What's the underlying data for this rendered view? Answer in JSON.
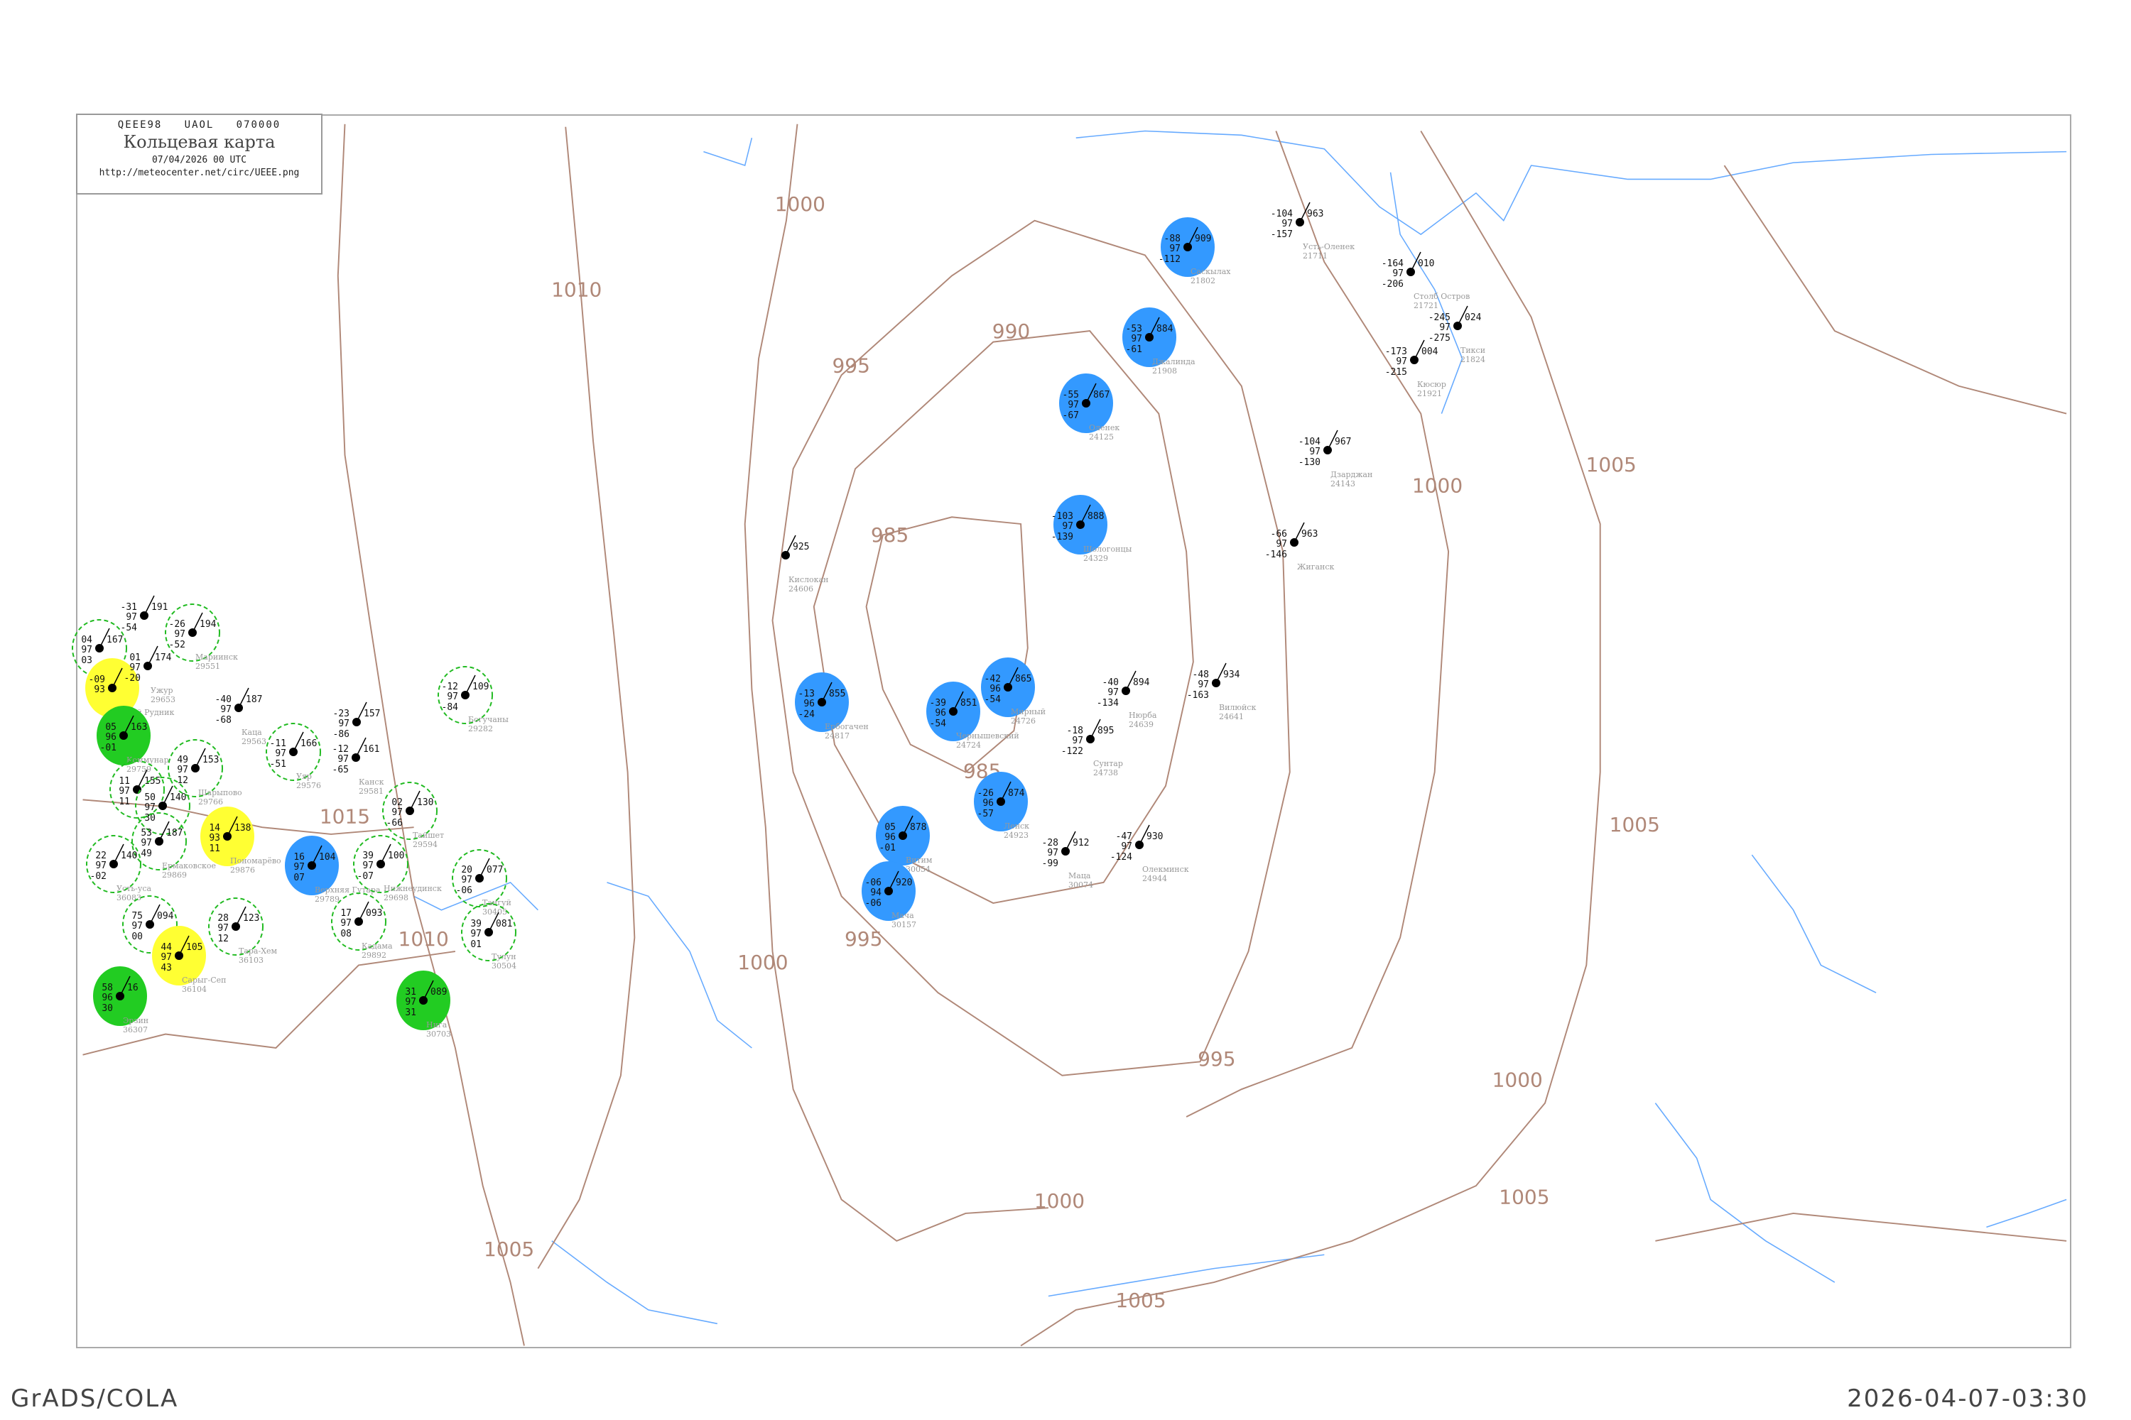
{
  "header": {
    "code": "QEEE98   UAOL   070000",
    "title": "Кольцевая карта",
    "date": "07/04/2026 00 UTC",
    "url": "http://meteocenter.net/circ/UEEE.png"
  },
  "footer": {
    "left": "GrADS/COLA",
    "right": "2026-04-07-03:30"
  },
  "colors": {
    "isobar": "#b08878",
    "water": "#66aaff",
    "mark_blue": "#3399ff",
    "mark_yellow": "#ffff33",
    "mark_green": "#22cc22",
    "mark_dashed": "#22bb22"
  },
  "isobar_labels": [
    "1000",
    "1010",
    "995",
    "990",
    "985",
    "985",
    "1015",
    "1010",
    "995",
    "1000",
    "995",
    "1005",
    "1005",
    "1000",
    "1000",
    "1005",
    "1000",
    "1005",
    "1005"
  ],
  "stations": [
    {
      "name": "Ербогачен",
      "id": "24817",
      "t": "-13",
      "p": "855",
      "td": "-24",
      "vis": "96",
      "mark": "blue"
    },
    {
      "name": "Чернышевский",
      "id": "24724",
      "t": "-39",
      "p": "851",
      "td": "-54",
      "vis": "96",
      "mark": "blue"
    },
    {
      "name": "Мирный",
      "id": "24726",
      "t": "-42",
      "p": "865",
      "td": "-54",
      "vis": "96",
      "mark": "blue"
    },
    {
      "name": "Ленск",
      "id": "24923",
      "t": "-26",
      "p": "874",
      "td": "-57",
      "vis": "96",
      "mark": "blue"
    },
    {
      "name": "Витим",
      "id": "30054",
      "t": "05",
      "p": "878",
      "td": "-01",
      "vis": "96",
      "mark": "blue"
    },
    {
      "name": "Мача",
      "id": "30157",
      "t": "-06",
      "p": "920",
      "td": "-06",
      "vis": "94",
      "mark": "blue"
    },
    {
      "name": "Шологонцы",
      "id": "24329",
      "t": "-103",
      "p": "888",
      "td": "-139",
      "vis": "97",
      "mark": "blue"
    },
    {
      "name": "Кислокан",
      "id": "24606",
      "t": "",
      "p": "925",
      "td": "",
      "vis": "",
      "mark": "none"
    },
    {
      "name": "Нюрба",
      "id": "24639",
      "t": "-40",
      "p": "894",
      "td": "-134",
      "vis": "97",
      "mark": "none"
    },
    {
      "name": "Вилюйск",
      "id": "24641",
      "t": "-48",
      "p": "934",
      "td": "-163",
      "vis": "97",
      "mark": "none"
    },
    {
      "name": "Сунтар",
      "id": "24738",
      "t": "-18",
      "p": "895",
      "td": "-122",
      "vis": "97",
      "mark": "none"
    },
    {
      "name": "Олекминск",
      "id": "24944",
      "t": "-47",
      "p": "930",
      "td": "-124",
      "vis": "97",
      "mark": "none"
    },
    {
      "name": "Маца",
      "id": "30074",
      "t": "-28",
      "p": "912",
      "td": "-99",
      "vis": "97",
      "mark": "none"
    },
    {
      "name": "Саскылах",
      "id": "21802",
      "t": "-88",
      "p": "909",
      "td": "-112",
      "vis": "97",
      "mark": "blue"
    },
    {
      "name": "Джалинда",
      "id": "21908",
      "t": "-53",
      "p": "884",
      "td": "-61",
      "vis": "97",
      "mark": "blue"
    },
    {
      "name": "Оленек",
      "id": "24125",
      "t": "-55",
      "p": "867",
      "td": "-67",
      "vis": "97",
      "mark": "blue"
    },
    {
      "name": "Усть-Оленек",
      "id": "21711",
      "t": "-104",
      "p": "963",
      "td": "-157",
      "vis": "97",
      "mark": "none"
    },
    {
      "name": "Столб Остров",
      "id": "21721",
      "t": "-164",
      "p": "010",
      "td": "-206",
      "vis": "97",
      "mark": "none"
    },
    {
      "name": "Тикси",
      "id": "21824",
      "t": "-245",
      "p": "024",
      "td": "-275",
      "vis": "97",
      "mark": "none"
    },
    {
      "name": "Кюсюр",
      "id": "21921",
      "t": "-173",
      "p": "004",
      "td": "-215",
      "vis": "97",
      "mark": "none"
    },
    {
      "name": "Дзарджан",
      "id": "24143",
      "t": "-104",
      "p": "967",
      "td": "-130",
      "vis": "97",
      "mark": "none"
    },
    {
      "name": "Жиганск",
      "id": "",
      "t": "-66",
      "p": "963",
      "td": "-146",
      "vis": "97",
      "mark": "none"
    },
    {
      "name": "Мариинск",
      "id": "29551",
      "t": "-26",
      "p": "194",
      "td": "-52",
      "vis": "97",
      "mark": "dashed"
    },
    {
      "name": "",
      "id": "",
      "t": "04",
      "p": "167",
      "td": "03",
      "vis": "97",
      "mark": "dashed"
    },
    {
      "name": "Белый Рудник",
      "id": "",
      "t": "-09",
      "p": "",
      "td": "",
      "vis": "93",
      "mark": "yellow"
    },
    {
      "name": "Коммунар",
      "id": "29759",
      "t": "05",
      "p": "163",
      "td": "-01",
      "vis": "96",
      "mark": "green"
    },
    {
      "name": "Ужур",
      "id": "29653",
      "t": "01",
      "p": "174",
      "td": "-20",
      "vis": "97",
      "mark": "none"
    },
    {
      "name": "",
      "id": "",
      "t": "11",
      "p": "155",
      "td": "11",
      "vis": "97",
      "mark": "dashed"
    },
    {
      "name": "",
      "id": "",
      "t": "50",
      "p": "140",
      "td": "30",
      "vis": "97",
      "mark": "dashed"
    },
    {
      "name": "Шарыпово",
      "id": "29766",
      "t": "49",
      "p": "153",
      "td": "12",
      "vis": "97",
      "mark": "dashed"
    },
    {
      "name": "Ермаковское",
      "id": "29869",
      "t": "53",
      "p": "187",
      "td": "49",
      "vis": "97",
      "mark": "dashed"
    },
    {
      "name": "Пономарёво",
      "id": "29876",
      "t": "14",
      "p": "138",
      "td": "11",
      "vis": "93",
      "mark": "yellow"
    },
    {
      "name": "Верхняя Гутара",
      "id": "29789",
      "t": "16",
      "p": "104",
      "td": "07",
      "vis": "97",
      "mark": "blue"
    },
    {
      "name": "Усть-уса",
      "id": "36083",
      "t": "22",
      "p": "140",
      "td": "-02",
      "vis": "97",
      "mark": "dashed"
    },
    {
      "name": "",
      "id": "",
      "t": "75",
      "p": "094",
      "td": "00",
      "vis": "97",
      "mark": "dashed"
    },
    {
      "name": "Сарыг-Сеп",
      "id": "36104",
      "t": "44",
      "p": "105",
      "td": "43",
      "vis": "97",
      "mark": "yellow"
    },
    {
      "name": "Эрзин",
      "id": "36307",
      "t": "58",
      "p": "16",
      "td": "30",
      "vis": "96",
      "mark": "green"
    },
    {
      "name": "Тара-Хем",
      "id": "36103",
      "t": "28",
      "p": "123",
      "td": "12",
      "vis": "97",
      "mark": "dashed"
    },
    {
      "name": "Тайшет",
      "id": "29594",
      "t": "02",
      "p": "130",
      "td": "-66",
      "vis": "97",
      "mark": "dashed"
    },
    {
      "name": "Нижнеудинск",
      "id": "29698",
      "t": "39",
      "p": "100",
      "td": "-07",
      "vis": "97",
      "mark": "dashed"
    },
    {
      "name": "Тангуй",
      "id": "30405",
      "t": "20",
      "p": "077",
      "td": "-06",
      "vis": "97",
      "mark": "dashed"
    },
    {
      "name": "Кадама",
      "id": "29892",
      "t": "17",
      "p": "093",
      "td": "08",
      "vis": "97",
      "mark": "dashed"
    },
    {
      "name": "Тулун",
      "id": "30504",
      "t": "39",
      "p": "081",
      "td": "01",
      "vis": "97",
      "mark": "dashed"
    },
    {
      "name": "Нига",
      "id": "30703",
      "t": "31",
      "p": "089",
      "td": "31",
      "vis": "97",
      "mark": "green"
    },
    {
      "name": "Уяр",
      "id": "29576",
      "t": "-11",
      "p": "166",
      "td": "-51",
      "vis": "97",
      "mark": "dashed"
    },
    {
      "name": "Канск",
      "id": "29581",
      "t": "-12",
      "p": "161",
      "td": "-65",
      "vis": "97",
      "mark": "none"
    },
    {
      "name": "Богучаны",
      "id": "29282",
      "t": "-12",
      "p": "109",
      "td": "-84",
      "vis": "97",
      "mark": "dashed"
    },
    {
      "name": "",
      "id": "",
      "t": "-31",
      "p": "191",
      "td": "-54",
      "vis": "97",
      "mark": "none"
    },
    {
      "name": "Каца",
      "id": "29563",
      "t": "-40",
      "p": "187",
      "td": "-68",
      "vis": "97",
      "mark": "none"
    },
    {
      "name": "",
      "id": "",
      "t": "-23",
      "p": "157",
      "td": "-86",
      "vis": "97",
      "mark": "none"
    }
  ]
}
